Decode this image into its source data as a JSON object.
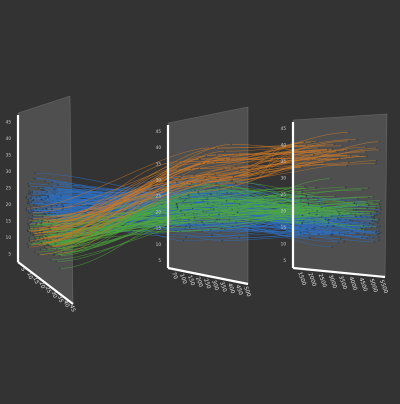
{
  "chart_data": {
    "type": "parallel-coordinates-3d",
    "background": "#333333",
    "axes": [
      {
        "id": "axis1",
        "title": "",
        "tick_labels": [
          "5",
          "10",
          "15",
          "20",
          "25",
          "30",
          "35",
          "40",
          "45"
        ],
        "left_tick_labels": [
          "5",
          "10",
          "15",
          "20",
          "25",
          "30",
          "35",
          "40",
          "45"
        ],
        "range": [
          5,
          47
        ]
      },
      {
        "id": "axis2",
        "title": "",
        "tick_labels": [
          "70",
          "100",
          "150",
          "200",
          "250",
          "300",
          "350",
          "400",
          "450",
          "500"
        ],
        "left_tick_labels": [
          "5",
          "10",
          "15",
          "20",
          "25",
          "30",
          "35",
          "40",
          "45"
        ],
        "range": [
          70,
          500
        ]
      },
      {
        "id": "axis3",
        "title": "",
        "tick_labels": [
          "1500",
          "2000",
          "2500",
          "3000",
          "3500",
          "4000",
          "4500",
          "5000",
          "5500"
        ],
        "left_tick_labels": [
          "5",
          "10",
          "15",
          "20",
          "25",
          "30",
          "35",
          "40",
          "45"
        ],
        "range": [
          1500,
          5500
        ]
      }
    ],
    "series": [
      {
        "color": "#2f6fbf",
        "count": 170
      },
      {
        "color": "#4fa83f",
        "count": 80
      },
      {
        "color": "#c8782a",
        "count": 45
      }
    ],
    "grid": false,
    "legend": "none"
  }
}
